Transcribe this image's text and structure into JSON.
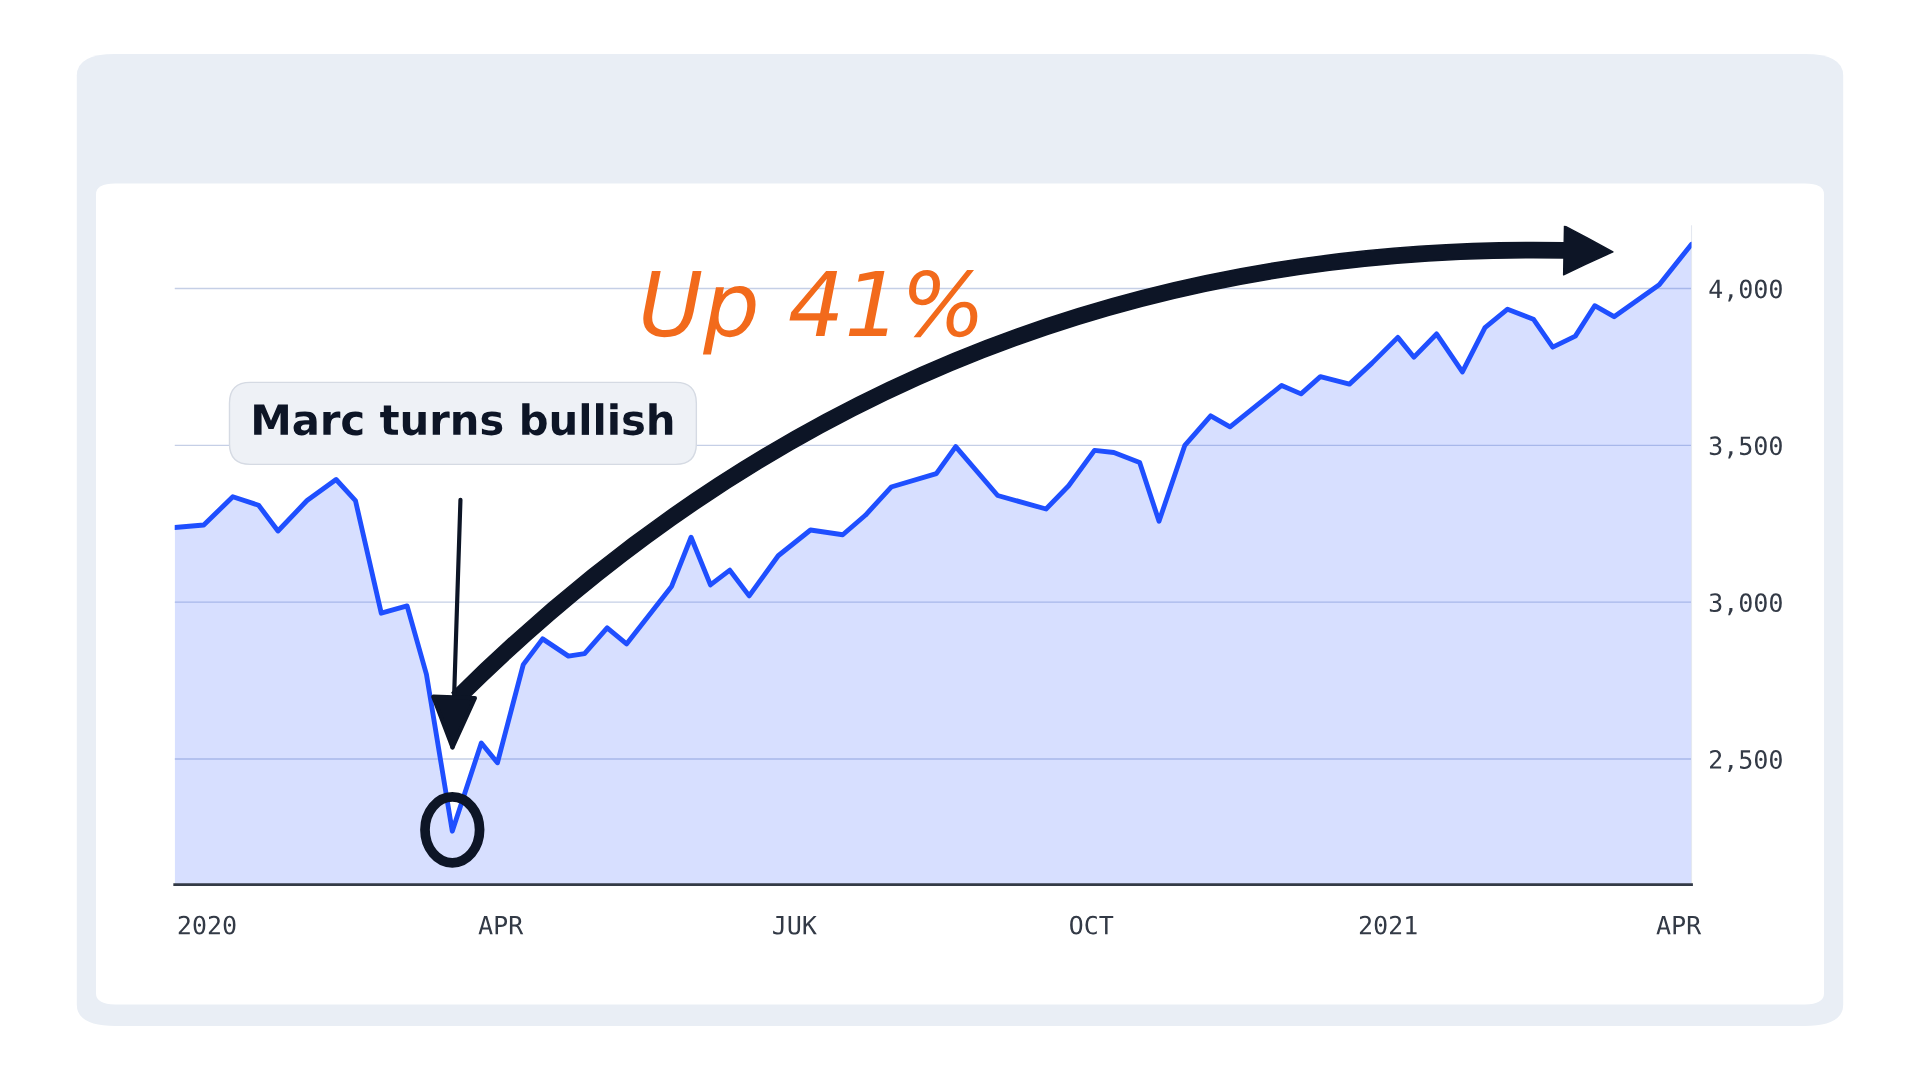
{
  "chart_data": {
    "type": "area",
    "x": [
      "2019-12-22",
      "2019-12-31",
      "2020-01-09",
      "2020-01-17",
      "2020-01-23",
      "2020-02-01",
      "2020-02-10",
      "2020-02-16",
      "2020-02-24",
      "2020-03-03",
      "2020-03-09",
      "2020-03-17",
      "2020-03-26",
      "2020-03-31",
      "2020-04-08",
      "2020-04-14",
      "2020-04-22",
      "2020-04-27",
      "2020-05-04",
      "2020-05-10",
      "2020-05-24",
      "2020-05-30",
      "2020-06-05",
      "2020-06-11",
      "2020-06-17",
      "2020-06-26",
      "2020-07-06",
      "2020-07-16",
      "2020-07-23",
      "2020-07-31",
      "2020-08-14",
      "2020-08-20",
      "2020-09-02",
      "2020-09-17",
      "2020-09-24",
      "2020-10-02",
      "2020-10-08",
      "2020-10-16",
      "2020-10-22",
      "2020-10-30",
      "2020-11-07",
      "2020-11-13",
      "2020-11-29",
      "2020-12-05",
      "2020-12-11",
      "2020-12-20",
      "2020-12-27",
      "2021-01-04",
      "2021-01-09",
      "2021-01-16",
      "2021-01-24",
      "2021-01-31",
      "2021-02-07",
      "2021-02-15",
      "2021-02-21",
      "2021-02-28",
      "2021-03-06",
      "2021-03-12",
      "2021-03-26",
      "2021-04-05"
    ],
    "series": [
      {
        "color": "#1f4fff",
        "values": [
          3238,
          3246,
          3336,
          3309,
          3227,
          3324,
          3391,
          3324,
          2965,
          2988,
          2770,
          2270,
          2551,
          2488,
          2801,
          2883,
          2828,
          2836,
          2918,
          2867,
          3051,
          3207,
          3055,
          3102,
          3020,
          3148,
          3230,
          3215,
          3277,
          3367,
          3410,
          3496,
          3340,
          3297,
          3371,
          3484,
          3477,
          3445,
          3258,
          3500,
          3594,
          3559,
          3691,
          3664,
          3719,
          3695,
          3762,
          3844,
          3781,
          3855,
          3734,
          3875,
          3934,
          3902,
          3813,
          3848,
          3945,
          3910,
          4012,
          4141
        ]
      }
    ],
    "xlim": [
      "2019-12-22",
      "2021-04-05"
    ],
    "xticks": [
      {
        "value": "2020-01-01",
        "label": "2020"
      },
      {
        "value": "2020-04-01",
        "label": "APR"
      },
      {
        "value": "2020-07-01",
        "label": "JUK"
      },
      {
        "value": "2020-10-01",
        "label": "OCT"
      },
      {
        "value": "2021-01-01",
        "label": "2021"
      },
      {
        "value": "2021-04-01",
        "label": "APR"
      }
    ],
    "ylim": [
      2100,
      4200
    ],
    "yticks": [
      {
        "value": 2500,
        "label": "2,500"
      },
      {
        "value": 3000,
        "label": "3,000"
      },
      {
        "value": 3500,
        "label": "3,500"
      },
      {
        "value": 4000,
        "label": "4,000"
      }
    ],
    "grid": "y",
    "annotations": [
      "Marc turns bullish",
      "Up 41%"
    ]
  }
}
